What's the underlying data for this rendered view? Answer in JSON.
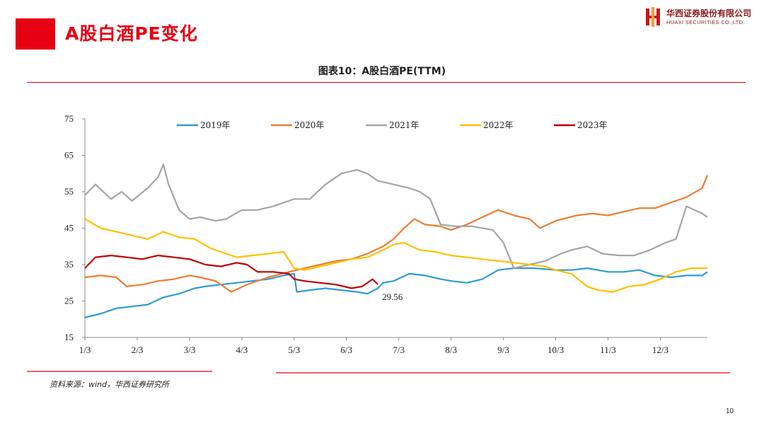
{
  "header": {
    "title": "A股白酒PE变化",
    "logo_cn": "华西证券股份有限公司",
    "logo_en": "HUAXI SECURITIES CO.,LTD."
  },
  "figure_title": "图表10：A股白酒PE(TTM)",
  "source": "资料来源：wind，华西证券研究所",
  "page_number": "10",
  "colors": {
    "accent": "#e60012"
  },
  "chart_data": {
    "type": "line",
    "title": "图表10：A股白酒PE(TTM)",
    "xlabel": "",
    "ylabel": "",
    "ylim": [
      15,
      75
    ],
    "yticks": [
      15,
      25,
      35,
      45,
      55,
      65,
      75
    ],
    "xlim": [
      1,
      12.9
    ],
    "xticks": [
      1,
      2,
      3,
      4,
      5,
      6,
      7,
      8,
      9,
      10,
      11,
      12
    ],
    "xticklabels": [
      "1/3",
      "2/3",
      "3/3",
      "4/3",
      "5/3",
      "6/3",
      "7/3",
      "8/3",
      "9/3",
      "10/3",
      "11/3",
      "12/3"
    ],
    "legend_position": "top",
    "grid": false,
    "annotation": {
      "text": "29.56",
      "x": 6.6,
      "y": 29.56
    },
    "series": [
      {
        "name": "2019年",
        "color": "#2e9bd6",
        "x": [
          1,
          1.3,
          1.6,
          1.9,
          2.2,
          2.5,
          2.8,
          3.1,
          3.3,
          3.6,
          3.9,
          4.2,
          4.5,
          4.8,
          5.0,
          5.05,
          5.3,
          5.6,
          5.9,
          6.2,
          6.4,
          6.6,
          6.7,
          6.9,
          7.2,
          7.5,
          7.8,
          8.0,
          8.3,
          8.6,
          8.9,
          9.2,
          9.6,
          10.0,
          10.3,
          10.6,
          11.0,
          11.3,
          11.6,
          11.9,
          12.2,
          12.5,
          12.8,
          12.9
        ],
        "values": [
          20.5,
          21.5,
          23,
          23.5,
          24,
          26,
          27,
          28.5,
          29,
          29.5,
          30,
          30.5,
          31,
          32,
          32.5,
          27.5,
          28,
          28.5,
          28,
          27.5,
          27,
          28.5,
          30,
          30.5,
          32.5,
          32,
          31,
          30.5,
          30,
          31,
          33.5,
          34,
          34,
          33.5,
          33.5,
          34,
          33,
          33,
          33.5,
          32,
          31.5,
          32,
          32,
          33
        ]
      },
      {
        "name": "2020年",
        "color": "#ed7d31",
        "x": [
          1,
          1.3,
          1.6,
          1.8,
          2.1,
          2.4,
          2.7,
          3.0,
          3.2,
          3.5,
          3.8,
          4.1,
          4.5,
          4.9,
          5.2,
          5.5,
          5.8,
          6.1,
          6.4,
          6.7,
          6.9,
          7.1,
          7.3,
          7.5,
          7.8,
          8.0,
          8.3,
          8.6,
          8.9,
          9.2,
          9.5,
          9.7,
          10.0,
          10.4,
          10.7,
          11.0,
          11.3,
          11.6,
          11.9,
          12.2,
          12.5,
          12.8,
          12.9
        ],
        "values": [
          31.5,
          32,
          31.5,
          29,
          29.5,
          30.5,
          31,
          32,
          31.5,
          30.5,
          27.5,
          29.5,
          31.5,
          33,
          34,
          35,
          36,
          36.5,
          38,
          40,
          42,
          45,
          47.5,
          46,
          45.5,
          44.5,
          46,
          48,
          50,
          48.5,
          47.5,
          45,
          47,
          48.5,
          49,
          48.5,
          49.5,
          50.5,
          50.5,
          52,
          53.5,
          56,
          59.5
        ]
      },
      {
        "name": "2021年",
        "color": "#a5a5a5",
        "x": [
          1,
          1.2,
          1.5,
          1.7,
          1.9,
          2.2,
          2.4,
          2.5,
          2.6,
          2.8,
          3.0,
          3.2,
          3.5,
          3.7,
          4.0,
          4.3,
          4.6,
          5.0,
          5.3,
          5.6,
          5.9,
          6.2,
          6.4,
          6.6,
          6.9,
          7.2,
          7.4,
          7.6,
          7.8,
          8.1,
          8.4,
          8.6,
          8.8,
          9.0,
          9.2,
          9.5,
          9.8,
          10.1,
          10.3,
          10.6,
          10.9,
          11.2,
          11.5,
          11.8,
          12.1,
          12.3,
          12.5,
          12.8,
          12.9
        ],
        "values": [
          54,
          57,
          53,
          55,
          52.5,
          56,
          59,
          62.5,
          57,
          50,
          47.5,
          48,
          47,
          47.5,
          50,
          50,
          51,
          53,
          53,
          57,
          60,
          61,
          60,
          58,
          57,
          56,
          55,
          53,
          46,
          45.5,
          45.5,
          45,
          44.5,
          41,
          34,
          35,
          36,
          38,
          39,
          40,
          38,
          37.5,
          37.5,
          39,
          41,
          42,
          51,
          49,
          48
        ]
      },
      {
        "name": "2022年",
        "color": "#ffc000",
        "x": [
          1,
          1.3,
          1.6,
          1.9,
          2.2,
          2.5,
          2.8,
          3.1,
          3.4,
          3.6,
          3.9,
          4.2,
          4.5,
          4.8,
          5.0,
          5.2,
          5.5,
          5.8,
          6.1,
          6.4,
          6.7,
          6.9,
          7.1,
          7.4,
          7.7,
          8.0,
          8.3,
          8.6,
          8.9,
          9.2,
          9.5,
          9.8,
          10.0,
          10.3,
          10.6,
          10.8,
          11.1,
          11.4,
          11.7,
          12.0,
          12.3,
          12.6,
          12.9
        ],
        "values": [
          47.5,
          45,
          44,
          43,
          42,
          44,
          42.5,
          42,
          39.5,
          38.5,
          37,
          37.5,
          38,
          38.5,
          34,
          33.5,
          34.5,
          35.5,
          36.5,
          37,
          39,
          40.5,
          41,
          39,
          38.5,
          37.5,
          37,
          36.5,
          36,
          35.5,
          35,
          34.5,
          33.5,
          32.5,
          29,
          28,
          27.5,
          29,
          29.5,
          31,
          33,
          34,
          34
        ]
      },
      {
        "name": "2023年",
        "color": "#c00000",
        "x": [
          1,
          1.2,
          1.5,
          1.8,
          2.1,
          2.4,
          2.7,
          3.0,
          3.3,
          3.6,
          3.9,
          4.1,
          4.3,
          4.6,
          4.9,
          5.0,
          5.2,
          5.5,
          5.8,
          6.1,
          6.3,
          6.5,
          6.6
        ],
        "values": [
          34,
          37,
          37.5,
          37,
          36.5,
          37.5,
          37,
          36.5,
          35,
          34.5,
          35.5,
          35,
          33,
          33,
          32.5,
          31,
          30.5,
          30,
          29.5,
          28.5,
          29,
          31,
          29.56
        ]
      }
    ]
  }
}
